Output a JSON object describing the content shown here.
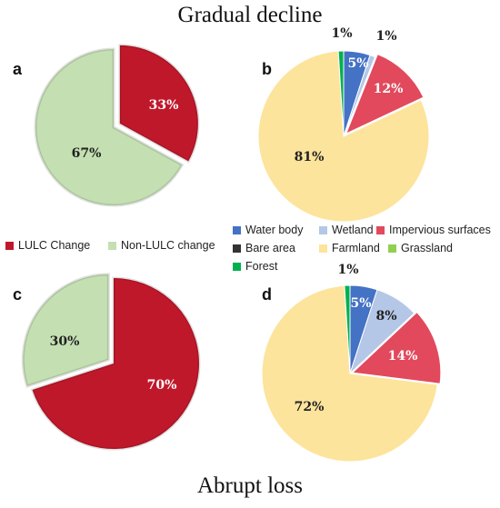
{
  "figure": {
    "title_top": "Gradual decline",
    "title_bottom": "Abrupt loss"
  },
  "colors": {
    "LULC Change": "#c0182b",
    "Non-LULC change": "#c4e0b2",
    "Water body": "#4472c4",
    "Wetland": "#b4c7e7",
    "Impervious surfaces": "#e2495c",
    "Bare area": "#333333",
    "Farmland": "#fde49c",
    "Grassland": "#92d050",
    "Forest": "#00b050"
  },
  "legends": {
    "change": [
      "LULC Change",
      "Non-LULC change"
    ],
    "landcover": [
      "Water body",
      "Wetland",
      "Impervious surfaces",
      "Bare area",
      "Farmland",
      "Grassland",
      "Forest"
    ]
  },
  "chart_data": [
    {
      "panel": "a",
      "type": "pie",
      "categories": [
        "LULC Change",
        "Non-LULC change"
      ],
      "values": [
        33,
        67
      ],
      "labels": [
        "33%",
        "67%"
      ]
    },
    {
      "panel": "b",
      "type": "pie",
      "categories": [
        "Water body",
        "Wetland",
        "Impervious surfaces",
        "Farmland",
        "Forest"
      ],
      "values": [
        5,
        1,
        12,
        81,
        1
      ],
      "labels": [
        "5%",
        "1%",
        "12%",
        "81%",
        "1%"
      ]
    },
    {
      "panel": "c",
      "type": "pie",
      "categories": [
        "LULC Change",
        "Non-LULC change"
      ],
      "values": [
        70,
        30
      ],
      "labels": [
        "70%",
        "30%"
      ]
    },
    {
      "panel": "d",
      "type": "pie",
      "categories": [
        "Water body",
        "Wetland",
        "Impervious surfaces",
        "Farmland",
        "Forest"
      ],
      "values": [
        5,
        8,
        14,
        72,
        1
      ],
      "labels": [
        "5%",
        "8%",
        "14%",
        "72%",
        "1%"
      ]
    }
  ]
}
